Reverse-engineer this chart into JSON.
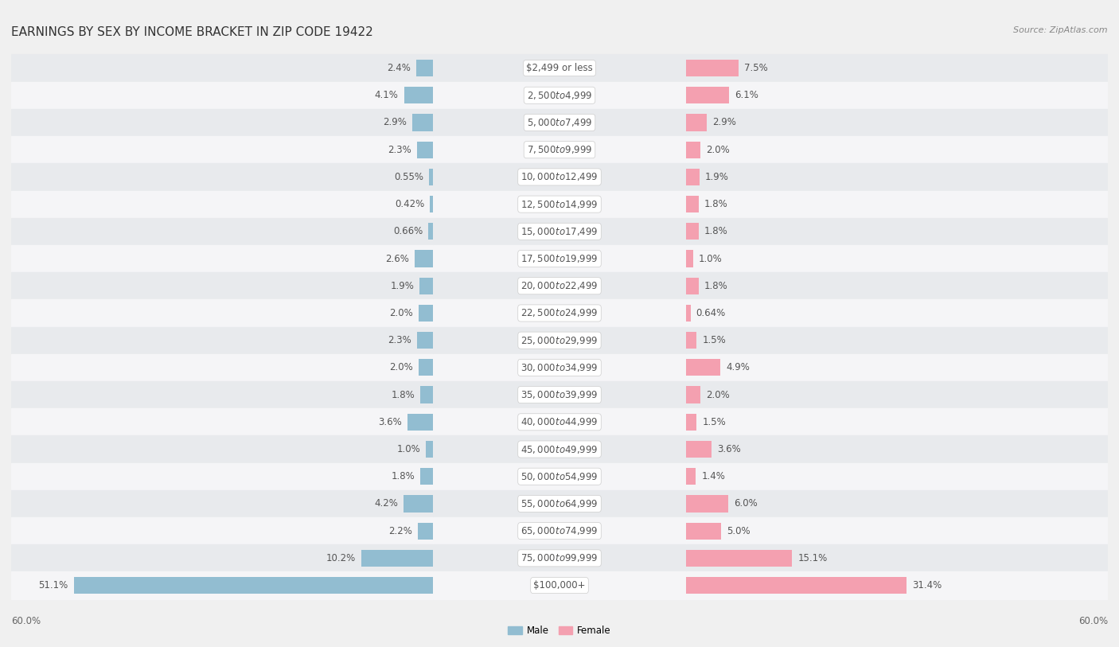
{
  "title": "EARNINGS BY SEX BY INCOME BRACKET IN ZIP CODE 19422",
  "source": "Source: ZipAtlas.com",
  "categories": [
    "$2,499 or less",
    "$2,500 to $4,999",
    "$5,000 to $7,499",
    "$7,500 to $9,999",
    "$10,000 to $12,499",
    "$12,500 to $14,999",
    "$15,000 to $17,499",
    "$17,500 to $19,999",
    "$20,000 to $22,499",
    "$22,500 to $24,999",
    "$25,000 to $29,999",
    "$30,000 to $34,999",
    "$35,000 to $39,999",
    "$40,000 to $44,999",
    "$45,000 to $49,999",
    "$50,000 to $54,999",
    "$55,000 to $64,999",
    "$65,000 to $74,999",
    "$75,000 to $99,999",
    "$100,000+"
  ],
  "male": [
    2.4,
    4.1,
    2.9,
    2.3,
    0.55,
    0.42,
    0.66,
    2.6,
    1.9,
    2.0,
    2.3,
    2.0,
    1.8,
    3.6,
    1.0,
    1.8,
    4.2,
    2.2,
    10.2,
    51.1
  ],
  "female": [
    7.5,
    6.1,
    2.9,
    2.0,
    1.9,
    1.8,
    1.8,
    1.0,
    1.8,
    0.64,
    1.5,
    4.9,
    2.0,
    1.5,
    3.6,
    1.4,
    6.0,
    5.0,
    15.1,
    31.4
  ],
  "male_color": "#92BDD1",
  "female_color": "#F4A0B0",
  "bar_height": 0.62,
  "xlim": 60.0,
  "legend_male": "Male",
  "legend_female": "Female",
  "bg_color": "#f0f0f0",
  "row_color_even": "#e8eaed",
  "row_color_odd": "#f5f5f7",
  "title_fontsize": 11,
  "value_fontsize": 8.5,
  "category_fontsize": 8.5,
  "source_fontsize": 8,
  "axis_label_fontsize": 8.5
}
